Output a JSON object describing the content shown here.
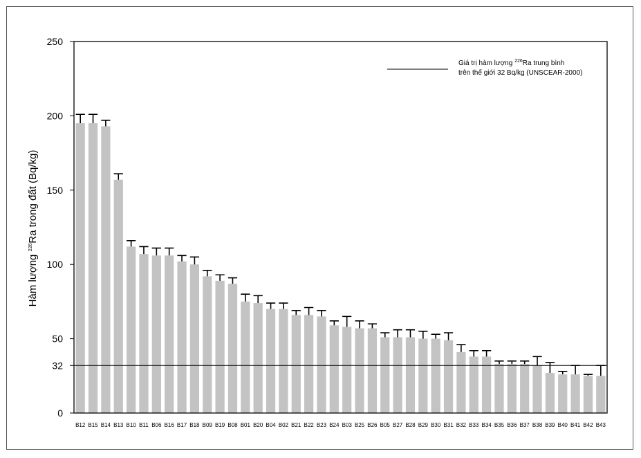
{
  "chart_data": {
    "type": "bar",
    "categories": [
      "B12",
      "B15",
      "B14",
      "B13",
      "B10",
      "B11",
      "B06",
      "B16",
      "B17",
      "B18",
      "B09",
      "B19",
      "B08",
      "B01",
      "B20",
      "B04",
      "B02",
      "B21",
      "B22",
      "B23",
      "B24",
      "B03",
      "B25",
      "B26",
      "B05",
      "B27",
      "B28",
      "B29",
      "B30",
      "B31",
      "B32",
      "B33",
      "B34",
      "B35",
      "B36",
      "B37",
      "B38",
      "B39",
      "B40",
      "B41",
      "B42",
      "B43"
    ],
    "values": [
      195,
      195,
      193,
      157,
      112,
      107,
      106,
      106,
      102,
      100,
      92,
      89,
      87,
      75,
      74,
      70,
      70,
      66,
      66,
      65,
      59,
      58,
      57,
      57,
      51,
      51,
      51,
      50,
      50,
      49,
      41,
      38,
      38,
      33,
      33,
      33,
      32,
      27,
      26,
      26,
      25,
      25
    ],
    "error_upper": [
      201,
      201,
      197,
      161,
      116,
      112,
      111,
      111,
      106,
      105,
      96,
      93,
      91,
      80,
      79,
      74,
      74,
      69,
      71,
      69,
      62,
      65,
      62,
      60,
      54,
      56,
      56,
      55,
      53,
      54,
      46,
      42,
      42,
      35,
      35,
      35,
      38,
      34,
      28,
      32,
      26,
      32
    ],
    "ylim": [
      0,
      250
    ],
    "yticks": [
      0,
      50,
      100,
      150,
      200,
      250
    ],
    "extra_ytick": 32,
    "reference_line": 32,
    "ylabel_pre": "Hàm lượng ",
    "ylabel_sup": "226",
    "ylabel_post": "Ra trong đất (Bq/kg)",
    "legend": {
      "line1_pre": "Giá trị hàm lượng ",
      "line1_sup": "226",
      "line1_post": "Ra trung bình",
      "line2": "trên thế giới 32 Bq/kg (UNSCEAR-2000)"
    },
    "bar_color": "#c3c3c3",
    "line_color": "#000000"
  }
}
